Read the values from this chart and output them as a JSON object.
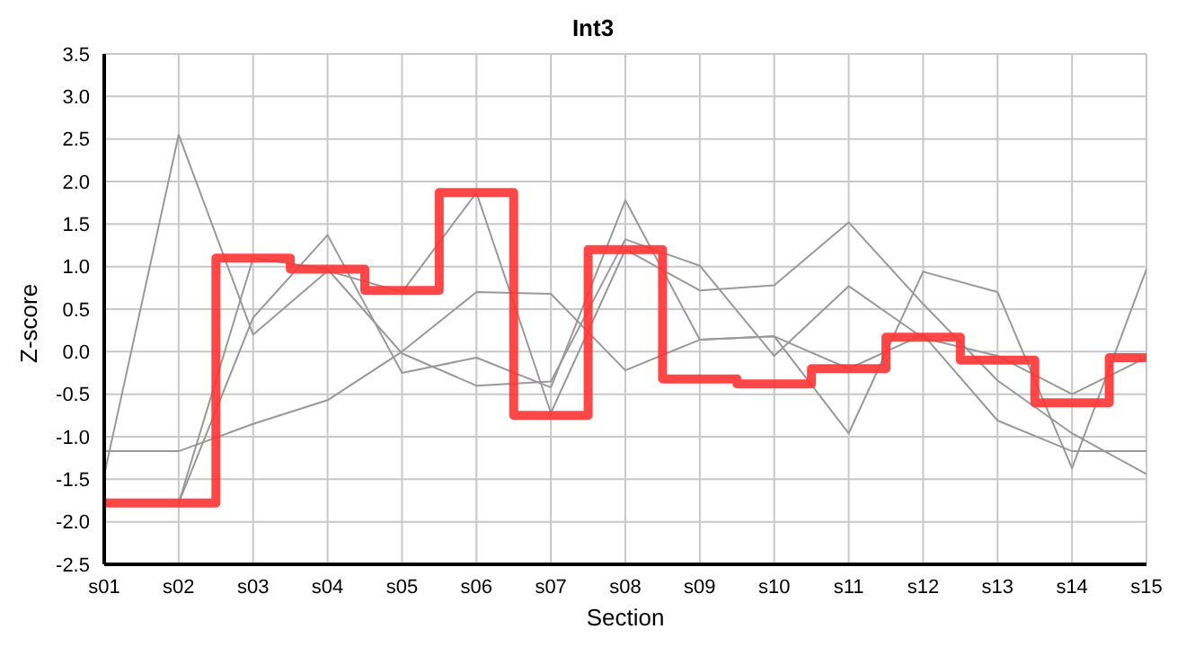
{
  "chart_data": {
    "type": "line",
    "title": "Int3",
    "xlabel": "Section",
    "ylabel": "Z-score",
    "categories": [
      "s01",
      "s02",
      "s03",
      "s04",
      "s05",
      "s06",
      "s07",
      "s08",
      "s09",
      "s10",
      "s11",
      "s12",
      "s13",
      "s14",
      "s15"
    ],
    "series": [
      {
        "type": "line",
        "color": "#999999",
        "values": [
          -1.45,
          2.55,
          0.2,
          0.95,
          0.7,
          1.87,
          -0.72,
          1.2,
          0.72,
          0.78,
          1.52,
          0.56,
          -0.34,
          -0.96,
          -1.44
        ]
      },
      {
        "type": "line",
        "color": "#999999",
        "values": [
          null,
          -1.78,
          1.1,
          0.97,
          -0.02,
          -0.4,
          -0.35,
          1.32,
          1.01,
          -0.05,
          0.77,
          0.16,
          -0.05,
          -0.5,
          -0.07
        ]
      },
      {
        "type": "line",
        "color": "#999999",
        "values": [
          null,
          -1.78,
          0.4,
          1.37,
          -0.25,
          -0.07,
          -0.42,
          1.78,
          0.14,
          0.18,
          -0.96,
          0.94,
          0.7,
          -1.37,
          0.97
        ]
      },
      {
        "type": "line",
        "color": "#999999",
        "values": [
          -1.17,
          -1.17,
          -0.85,
          -0.57,
          0.0,
          0.7,
          0.68,
          -0.22,
          0.14,
          0.18,
          -0.2,
          0.2,
          -0.81,
          -1.17,
          -1.17
        ]
      },
      {
        "type": "step",
        "color": "#ff3333",
        "values": [
          -1.78,
          -1.78,
          1.1,
          0.97,
          0.72,
          1.87,
          -0.75,
          1.2,
          -0.32,
          -0.38,
          -0.2,
          0.17,
          -0.1,
          -0.6,
          -0.07
        ]
      }
    ],
    "ylim": [
      -2.5,
      3.5
    ],
    "yticks": [
      {
        "value": -2.5,
        "label": "-2.5"
      },
      {
        "value": -2,
        "label": "-2.0"
      },
      {
        "value": -1.5,
        "label": "-1.5"
      },
      {
        "value": -1,
        "label": "-1.0"
      },
      {
        "value": -0.5,
        "label": "-0.5"
      },
      {
        "value": 0,
        "label": "0.0"
      },
      {
        "value": 0.5,
        "label": "0.5"
      },
      {
        "value": 1,
        "label": "1.0"
      },
      {
        "value": 1.5,
        "label": "1.5"
      },
      {
        "value": 2,
        "label": "2.0"
      },
      {
        "value": 2.5,
        "label": "2.5"
      },
      {
        "value": 3,
        "label": "3.0"
      },
      {
        "value": 3.5,
        "label": "3.5"
      }
    ],
    "grid": true,
    "marker": "none"
  }
}
